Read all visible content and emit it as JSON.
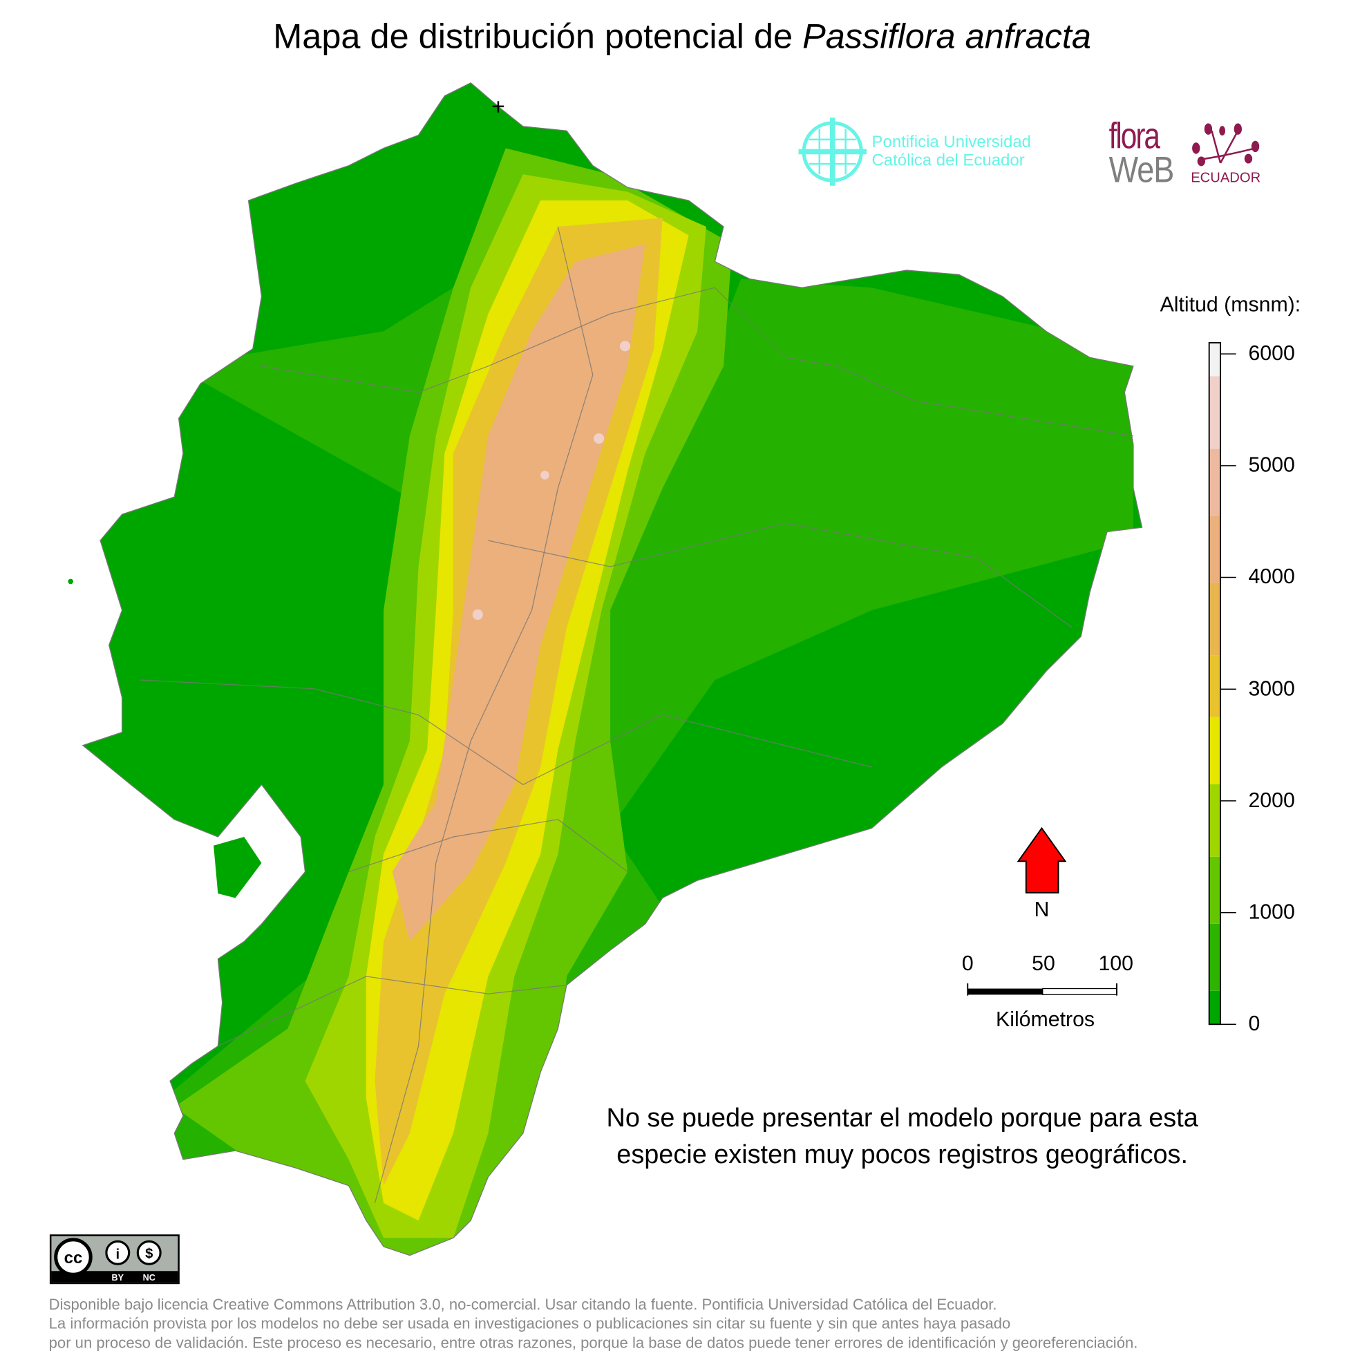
{
  "title": {
    "prefix": "Mapa de distribución potencial de ",
    "species": "Passiflora anfracta"
  },
  "logos": {
    "puce_line1": "Pontificia Universidad",
    "puce_line2": "Católica del Ecuador",
    "puce_color": "#66f4e6",
    "flora_word": "flora",
    "web_word": "WeB",
    "ecuador_word": "ECUADOR",
    "flora_color": "#8e1a4f"
  },
  "legend": {
    "title": "Altitud (msnm):",
    "ticks": [
      "6000",
      "5000",
      "4000",
      "3000",
      "2000",
      "1000",
      "0"
    ],
    "tick_values": [
      6000,
      5000,
      4000,
      3000,
      2000,
      1000,
      0
    ],
    "range": [
      0,
      6100
    ],
    "breaks": [
      0,
      300,
      900,
      1500,
      2150,
      2750,
      3300,
      3950,
      4550,
      5150,
      5800,
      6100
    ],
    "colors": [
      "#00a600",
      "#2db400",
      "#63c600",
      "#a0d600",
      "#e6e600",
      "#e8c32e",
      "#e8b54f",
      "#ebb07b",
      "#edbaa0",
      "#f0d0c8",
      "#f2f2f2"
    ]
  },
  "north_arrow": {
    "label": "N",
    "color": "#ff0000"
  },
  "scale_bar": {
    "labels": [
      "0",
      "50",
      "100"
    ],
    "unit": "Kilómetros"
  },
  "message": {
    "line1": "No se puede presentar el modelo porque para esta",
    "line2": "especie existen muy pocos registros geográficos."
  },
  "license_badge": {
    "cc": "cc",
    "by": "BY",
    "nc": "NC"
  },
  "footer": {
    "line1": "Disponible bajo licencia Creative Commons Attribution 3.0, no-comercial. Usar citando la fuente. Pontificia Universidad Católica del Ecuador.",
    "line2": "La información provista por los modelos no debe ser usada en investigaciones o publicaciones sin citar su fuente y sin que antes haya pasado",
    "line3": "por un proceso de validación. Este proceso es necesario, entre otras razones, porque la base de datos puede tener errores de identificación y georeferenciación."
  }
}
